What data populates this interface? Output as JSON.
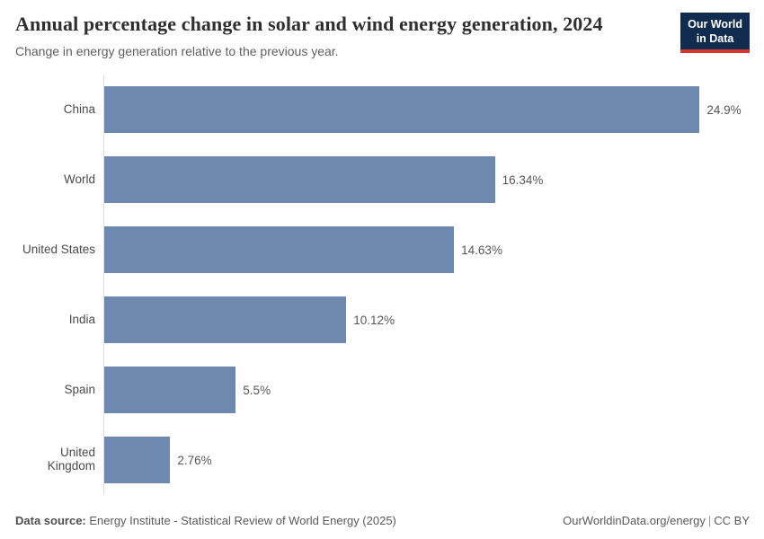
{
  "header": {
    "title": "Annual percentage change in solar and wind energy generation, 2024",
    "subtitle": "Change in energy generation relative to the previous year.",
    "logo": {
      "line1": "Our World",
      "line2": "in Data"
    }
  },
  "chart_data": {
    "type": "bar",
    "orientation": "horizontal",
    "title": "Annual percentage change in solar and wind energy generation, 2024",
    "subtitle": "Change in energy generation relative to the previous year.",
    "categories": [
      "China",
      "World",
      "United States",
      "India",
      "Spain",
      "United Kingdom"
    ],
    "values": [
      24.9,
      16.34,
      14.63,
      10.12,
      5.5,
      2.76
    ],
    "value_labels": [
      "24.9%",
      "16.34%",
      "14.63%",
      "10.12%",
      "5.5%",
      "2.76%"
    ],
    "unit": "%",
    "xlim": [
      0,
      27.6
    ],
    "grid": false,
    "legend": "none",
    "bar_color": "#6d89af"
  },
  "footer": {
    "source_label": "Data source:",
    "source_text": " Energy Institute - Statistical Review of World Energy (2025)",
    "url": "OurWorldinData.org/energy",
    "separator": "|",
    "license": "CC BY"
  },
  "colors": {
    "bar": "#6d89af",
    "axis_line": "#dcdcdc",
    "logo_background": "#102d50",
    "logo_underline": "#d8352c",
    "title_text": "#2f2f2f",
    "subtitle_text": "#5e5e5e"
  }
}
